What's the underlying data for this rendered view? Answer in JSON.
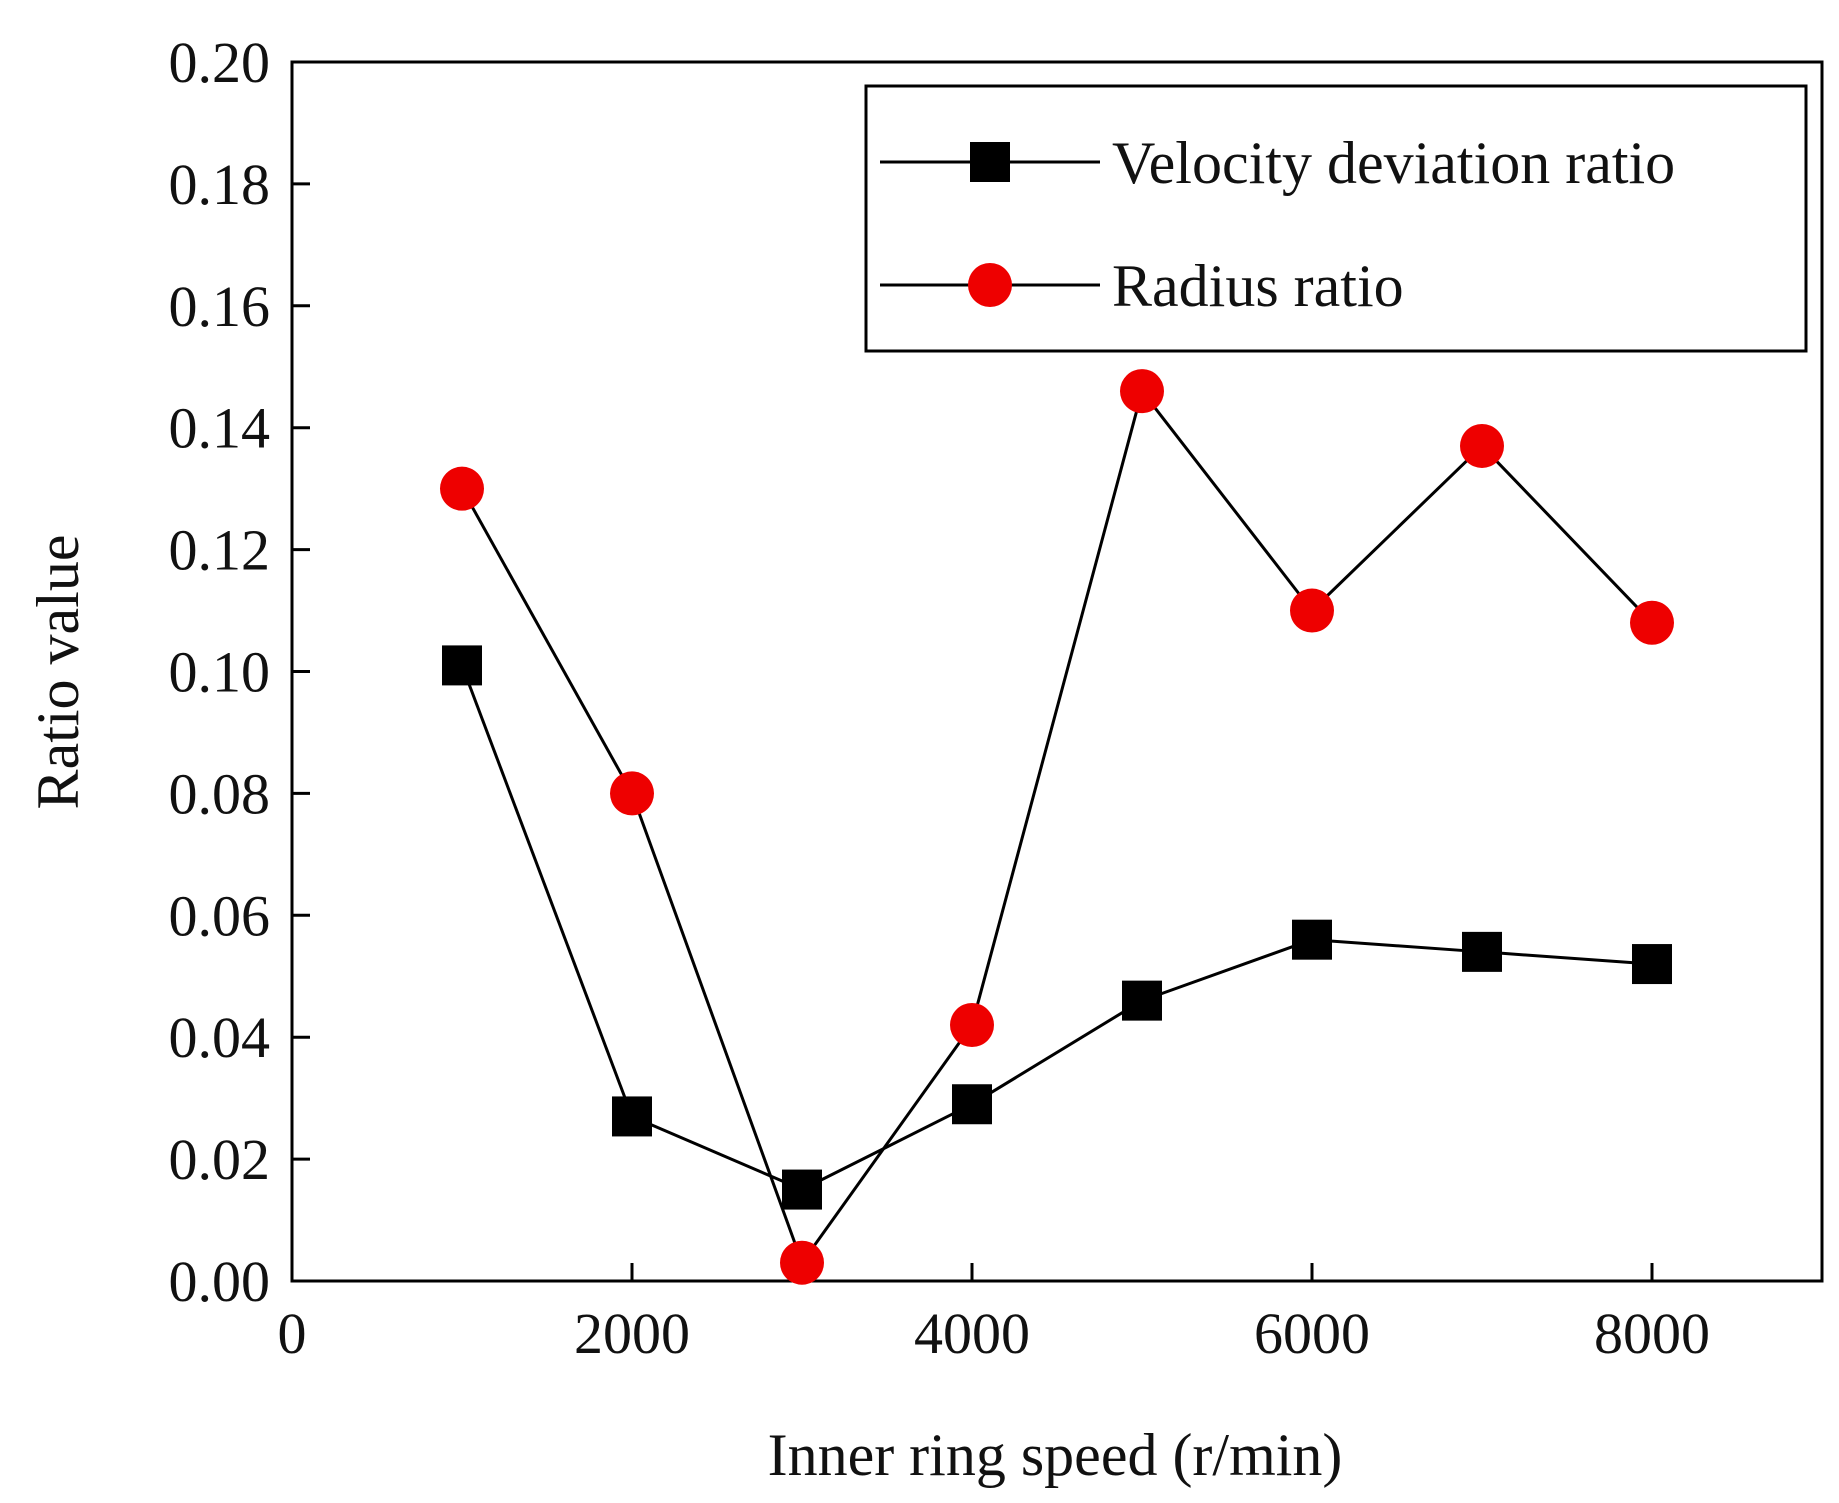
{
  "chart_data": {
    "type": "line",
    "title": "",
    "xlabel": "Inner ring speed  (r/min)",
    "ylabel": "Ratio value",
    "xlim": [
      0,
      9000
    ],
    "ylim": [
      0,
      0.2
    ],
    "xticks": [
      0,
      2000,
      4000,
      6000,
      8000
    ],
    "xtick_labels": [
      "0",
      "2000",
      "4000",
      "6000",
      "8000"
    ],
    "yticks": [
      0,
      0.02,
      0.04,
      0.06,
      0.08,
      0.1,
      0.12,
      0.14,
      0.16,
      0.18,
      0.2
    ],
    "ytick_labels": [
      "0.00",
      "0.02",
      "0.04",
      "0.06",
      "0.08",
      "0.10",
      "0.12",
      "0.14",
      "0.16",
      "0.18",
      "0.20"
    ],
    "grid": false,
    "legend_position": "top-right",
    "x": [
      1000,
      2000,
      3000,
      4000,
      5000,
      6000,
      7000,
      8000
    ],
    "series": [
      {
        "name": "Velocity deviation ratio",
        "marker": "square",
        "color": "#000000",
        "values": [
          0.101,
          0.027,
          0.015,
          0.029,
          0.046,
          0.056,
          0.054,
          0.052
        ]
      },
      {
        "name": "Radius ratio",
        "marker": "circle",
        "color": "#ee0000",
        "values": [
          0.13,
          0.08,
          0.003,
          0.042,
          0.146,
          0.11,
          0.137,
          0.108
        ]
      }
    ]
  }
}
